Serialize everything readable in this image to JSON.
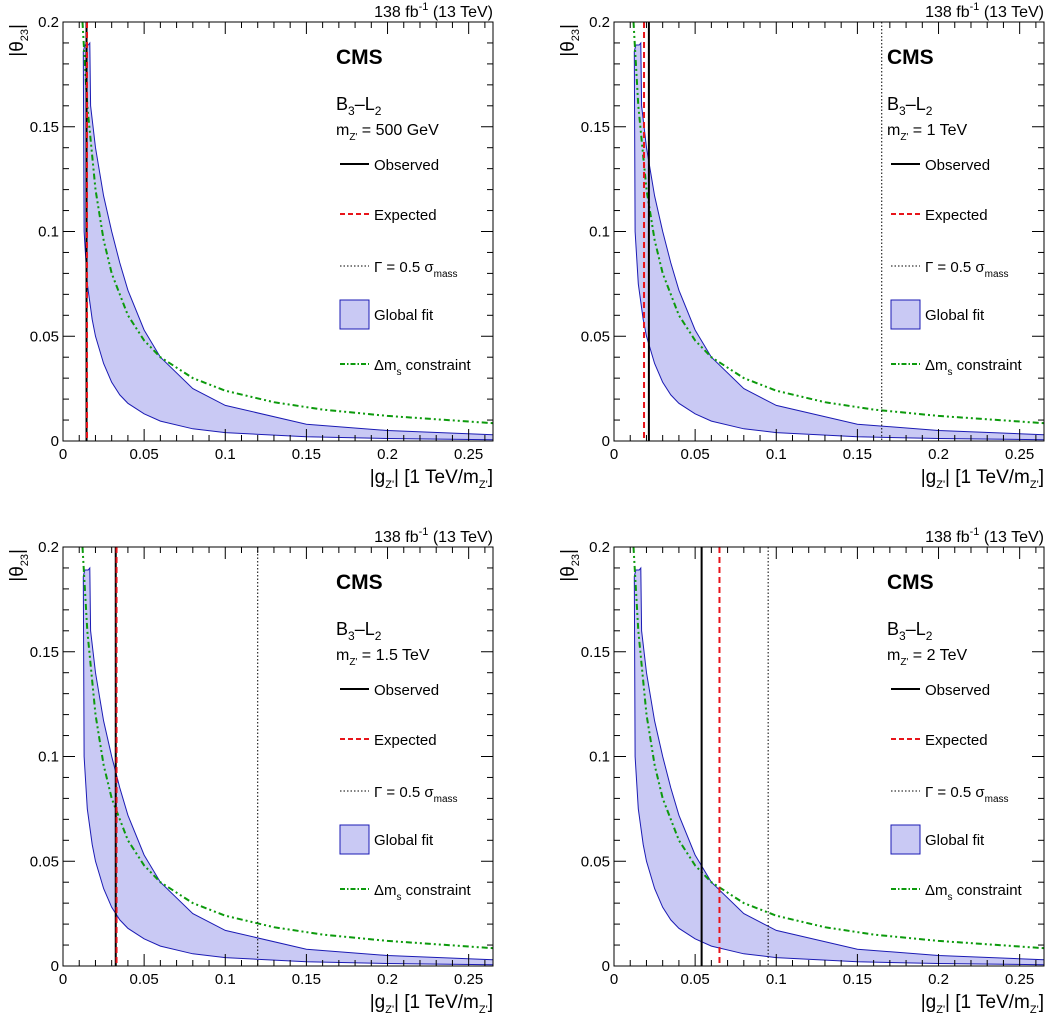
{
  "colors": {
    "observed": "#000000",
    "expected": "#e8141a",
    "width_line": "#000000",
    "fit_fill": "#c9c9f4",
    "fit_edge": "#1b1bb4",
    "dms": "#0c9a0c"
  },
  "chart_data": [
    {
      "type": "line",
      "header": "138 fb",
      "header_sup": "-1",
      "header_energy": " (13 TeV)",
      "cms": "CMS",
      "model": "B",
      "model_sub1": "3",
      "model_dash": "–L",
      "model_sub2": "2",
      "mass_prefix": "m",
      "mass_sub": "Z'",
      "mass_value": " = 500 GeV",
      "xlabel": "|g",
      "xlabel_sub": "Z'",
      "xlabel_mid": "| [1 TeV/m",
      "xlabel_sub2": "Z'",
      "xlabel_end": "]",
      "ylabel": "|θ",
      "ylabel_sub": "23",
      "ylabel_end": "|",
      "xlim": [
        0,
        0.265
      ],
      "ylim": [
        0,
        0.2
      ],
      "xticks": [
        0,
        0.05,
        0.1,
        0.15,
        0.2,
        0.25
      ],
      "xtick_labels": [
        "0",
        "0.05",
        "0.1",
        "0.15",
        "0.2",
        "0.25"
      ],
      "yticks": [
        0,
        0.05,
        0.1,
        0.15,
        0.2
      ],
      "ytick_labels": [
        "0",
        "0.05",
        "0.1",
        "0.15",
        "0.2"
      ],
      "observed_x": 0.0145,
      "expected_x": 0.0148,
      "width_x": null,
      "legend": {
        "observed": "Observed",
        "expected": "Expected",
        "width": "Γ = 0.5 σ",
        "width_sub": "mass",
        "fit": "Global fit",
        "dms_prefix": "Δm",
        "dms_sub": "s",
        "dms_suffix": " constraint"
      },
      "dms_constraint": {
        "x": [
          0.012,
          0.015,
          0.02,
          0.025,
          0.03,
          0.04,
          0.05,
          0.06,
          0.08,
          0.1,
          0.13,
          0.16,
          0.2,
          0.265
        ],
        "y": [
          0.2,
          0.16,
          0.12,
          0.096,
          0.08,
          0.06,
          0.048,
          0.04,
          0.03,
          0.024,
          0.0185,
          0.015,
          0.012,
          0.0085
        ]
      },
      "global_fit": {
        "upper": {
          "x": [
            0.0125,
            0.0135,
            0.0155,
            0.0165,
            0.017,
            0.02,
            0.025,
            0.03,
            0.035,
            0.04,
            0.05,
            0.06,
            0.08,
            0.1,
            0.15,
            0.2,
            0.265
          ],
          "y": [
            0.186,
            0.189,
            0.189,
            0.19,
            0.16,
            0.14,
            0.117,
            0.1,
            0.085,
            0.072,
            0.053,
            0.04,
            0.025,
            0.017,
            0.008,
            0.005,
            0.003
          ]
        },
        "lower": {
          "x": [
            0.0125,
            0.013,
            0.015,
            0.018,
            0.02,
            0.025,
            0.03,
            0.035,
            0.04,
            0.05,
            0.06,
            0.08,
            0.1,
            0.15,
            0.2,
            0.265
          ],
          "y": [
            0.186,
            0.1,
            0.075,
            0.058,
            0.05,
            0.037,
            0.028,
            0.022,
            0.018,
            0.013,
            0.0095,
            0.0058,
            0.004,
            0.002,
            0.0012,
            0.0006
          ]
        }
      }
    },
    {
      "type": "line",
      "header": "138 fb",
      "header_sup": "-1",
      "header_energy": " (13 TeV)",
      "cms": "CMS",
      "model": "B",
      "model_sub1": "3",
      "model_dash": "–L",
      "model_sub2": "2",
      "mass_prefix": "m",
      "mass_sub": "Z'",
      "mass_value": " = 1 TeV",
      "xlabel": "|g",
      "xlabel_sub": "Z'",
      "xlabel_mid": "| [1 TeV/m",
      "xlabel_sub2": "Z'",
      "xlabel_end": "]",
      "ylabel": "|θ",
      "ylabel_sub": "23",
      "ylabel_end": "|",
      "xlim": [
        0,
        0.265
      ],
      "ylim": [
        0,
        0.2
      ],
      "xticks": [
        0,
        0.05,
        0.1,
        0.15,
        0.2,
        0.25
      ],
      "xtick_labels": [
        "0",
        "0.05",
        "0.1",
        "0.15",
        "0.2",
        "0.25"
      ],
      "yticks": [
        0,
        0.05,
        0.1,
        0.15,
        0.2
      ],
      "ytick_labels": [
        "0",
        "0.05",
        "0.1",
        "0.15",
        "0.2"
      ],
      "observed_x": 0.0215,
      "expected_x": 0.0185,
      "width_x": 0.165,
      "legend": {
        "observed": "Observed",
        "expected": "Expected",
        "width": "Γ = 0.5 σ",
        "width_sub": "mass",
        "fit": "Global fit",
        "dms_prefix": "Δm",
        "dms_sub": "s",
        "dms_suffix": " constraint"
      },
      "dms_constraint": {
        "x": [
          0.012,
          0.015,
          0.02,
          0.025,
          0.03,
          0.04,
          0.05,
          0.06,
          0.08,
          0.1,
          0.13,
          0.16,
          0.2,
          0.265
        ],
        "y": [
          0.2,
          0.16,
          0.12,
          0.096,
          0.08,
          0.06,
          0.048,
          0.04,
          0.03,
          0.024,
          0.0185,
          0.015,
          0.012,
          0.0085
        ]
      },
      "global_fit": {
        "upper": {
          "x": [
            0.0125,
            0.0135,
            0.0155,
            0.0165,
            0.017,
            0.02,
            0.025,
            0.03,
            0.035,
            0.04,
            0.05,
            0.06,
            0.08,
            0.1,
            0.15,
            0.2,
            0.265
          ],
          "y": [
            0.186,
            0.189,
            0.189,
            0.19,
            0.16,
            0.14,
            0.117,
            0.1,
            0.085,
            0.072,
            0.053,
            0.04,
            0.025,
            0.017,
            0.008,
            0.005,
            0.003
          ]
        },
        "lower": {
          "x": [
            0.0125,
            0.013,
            0.015,
            0.018,
            0.02,
            0.025,
            0.03,
            0.035,
            0.04,
            0.05,
            0.06,
            0.08,
            0.1,
            0.15,
            0.2,
            0.265
          ],
          "y": [
            0.186,
            0.1,
            0.075,
            0.058,
            0.05,
            0.037,
            0.028,
            0.022,
            0.018,
            0.013,
            0.0095,
            0.0058,
            0.004,
            0.002,
            0.0012,
            0.0006
          ]
        }
      }
    },
    {
      "type": "line",
      "header": "138 fb",
      "header_sup": "-1",
      "header_energy": " (13 TeV)",
      "cms": "CMS",
      "model": "B",
      "model_sub1": "3",
      "model_dash": "–L",
      "model_sub2": "2",
      "mass_prefix": "m",
      "mass_sub": "Z'",
      "mass_value": " = 1.5 TeV",
      "xlabel": "|g",
      "xlabel_sub": "Z'",
      "xlabel_mid": "| [1 TeV/m",
      "xlabel_sub2": "Z'",
      "xlabel_end": "]",
      "ylabel": "|θ",
      "ylabel_sub": "23",
      "ylabel_end": "|",
      "xlim": [
        0,
        0.265
      ],
      "ylim": [
        0,
        0.2
      ],
      "xticks": [
        0,
        0.05,
        0.1,
        0.15,
        0.2,
        0.25
      ],
      "xtick_labels": [
        "0",
        "0.05",
        "0.1",
        "0.15",
        "0.2",
        "0.25"
      ],
      "yticks": [
        0,
        0.05,
        0.1,
        0.15,
        0.2
      ],
      "ytick_labels": [
        "0",
        "0.05",
        "0.1",
        "0.15",
        "0.2"
      ],
      "observed_x": 0.0325,
      "expected_x": 0.033,
      "width_x": 0.12,
      "legend": {
        "observed": "Observed",
        "expected": "Expected",
        "width": "Γ = 0.5 σ",
        "width_sub": "mass",
        "fit": "Global fit",
        "dms_prefix": "Δm",
        "dms_sub": "s",
        "dms_suffix": " constraint"
      },
      "dms_constraint": {
        "x": [
          0.012,
          0.015,
          0.02,
          0.025,
          0.03,
          0.04,
          0.05,
          0.06,
          0.08,
          0.1,
          0.13,
          0.16,
          0.2,
          0.265
        ],
        "y": [
          0.2,
          0.16,
          0.12,
          0.096,
          0.08,
          0.06,
          0.048,
          0.04,
          0.03,
          0.024,
          0.0185,
          0.015,
          0.012,
          0.0085
        ]
      },
      "global_fit": {
        "upper": {
          "x": [
            0.0125,
            0.0135,
            0.0155,
            0.0165,
            0.017,
            0.02,
            0.025,
            0.03,
            0.035,
            0.04,
            0.05,
            0.06,
            0.08,
            0.1,
            0.15,
            0.2,
            0.265
          ],
          "y": [
            0.186,
            0.189,
            0.189,
            0.19,
            0.16,
            0.14,
            0.117,
            0.1,
            0.085,
            0.072,
            0.053,
            0.04,
            0.025,
            0.017,
            0.008,
            0.005,
            0.003
          ]
        },
        "lower": {
          "x": [
            0.0125,
            0.013,
            0.015,
            0.018,
            0.02,
            0.025,
            0.03,
            0.035,
            0.04,
            0.05,
            0.06,
            0.08,
            0.1,
            0.15,
            0.2,
            0.265
          ],
          "y": [
            0.186,
            0.1,
            0.075,
            0.058,
            0.05,
            0.037,
            0.028,
            0.022,
            0.018,
            0.013,
            0.0095,
            0.0058,
            0.004,
            0.002,
            0.0012,
            0.0006
          ]
        }
      }
    },
    {
      "type": "line",
      "header": "138 fb",
      "header_sup": "-1",
      "header_energy": " (13 TeV)",
      "cms": "CMS",
      "model": "B",
      "model_sub1": "3",
      "model_dash": "–L",
      "model_sub2": "2",
      "mass_prefix": "m",
      "mass_sub": "Z'",
      "mass_value": " = 2 TeV",
      "xlabel": "|g",
      "xlabel_sub": "Z'",
      "xlabel_mid": "| [1 TeV/m",
      "xlabel_sub2": "Z'",
      "xlabel_end": "]",
      "ylabel": "|θ",
      "ylabel_sub": "23",
      "ylabel_end": "|",
      "xlim": [
        0,
        0.265
      ],
      "ylim": [
        0,
        0.2
      ],
      "xticks": [
        0,
        0.05,
        0.1,
        0.15,
        0.2,
        0.25
      ],
      "xtick_labels": [
        "0",
        "0.05",
        "0.1",
        "0.15",
        "0.2",
        "0.25"
      ],
      "yticks": [
        0,
        0.05,
        0.1,
        0.15,
        0.2
      ],
      "ytick_labels": [
        "0",
        "0.05",
        "0.1",
        "0.15",
        "0.2"
      ],
      "observed_x": 0.054,
      "expected_x": 0.065,
      "width_x": 0.095,
      "legend": {
        "observed": "Observed",
        "expected": "Expected",
        "width": "Γ = 0.5 σ",
        "width_sub": "mass",
        "fit": "Global fit",
        "dms_prefix": "Δm",
        "dms_sub": "s",
        "dms_suffix": " constraint"
      },
      "dms_constraint": {
        "x": [
          0.012,
          0.015,
          0.02,
          0.025,
          0.03,
          0.04,
          0.05,
          0.06,
          0.08,
          0.1,
          0.13,
          0.16,
          0.2,
          0.265
        ],
        "y": [
          0.2,
          0.16,
          0.12,
          0.096,
          0.08,
          0.06,
          0.048,
          0.04,
          0.03,
          0.024,
          0.0185,
          0.015,
          0.012,
          0.0085
        ]
      },
      "global_fit": {
        "upper": {
          "x": [
            0.0125,
            0.0135,
            0.0155,
            0.0165,
            0.017,
            0.02,
            0.025,
            0.03,
            0.035,
            0.04,
            0.05,
            0.06,
            0.08,
            0.1,
            0.15,
            0.2,
            0.265
          ],
          "y": [
            0.186,
            0.189,
            0.189,
            0.19,
            0.16,
            0.14,
            0.117,
            0.1,
            0.085,
            0.072,
            0.053,
            0.04,
            0.025,
            0.017,
            0.008,
            0.005,
            0.003
          ]
        },
        "lower": {
          "x": [
            0.0125,
            0.013,
            0.015,
            0.018,
            0.02,
            0.025,
            0.03,
            0.035,
            0.04,
            0.05,
            0.06,
            0.08,
            0.1,
            0.15,
            0.2,
            0.265
          ],
          "y": [
            0.186,
            0.1,
            0.075,
            0.058,
            0.05,
            0.037,
            0.028,
            0.022,
            0.018,
            0.013,
            0.0095,
            0.0058,
            0.004,
            0.002,
            0.0012,
            0.0006
          ]
        }
      }
    }
  ]
}
